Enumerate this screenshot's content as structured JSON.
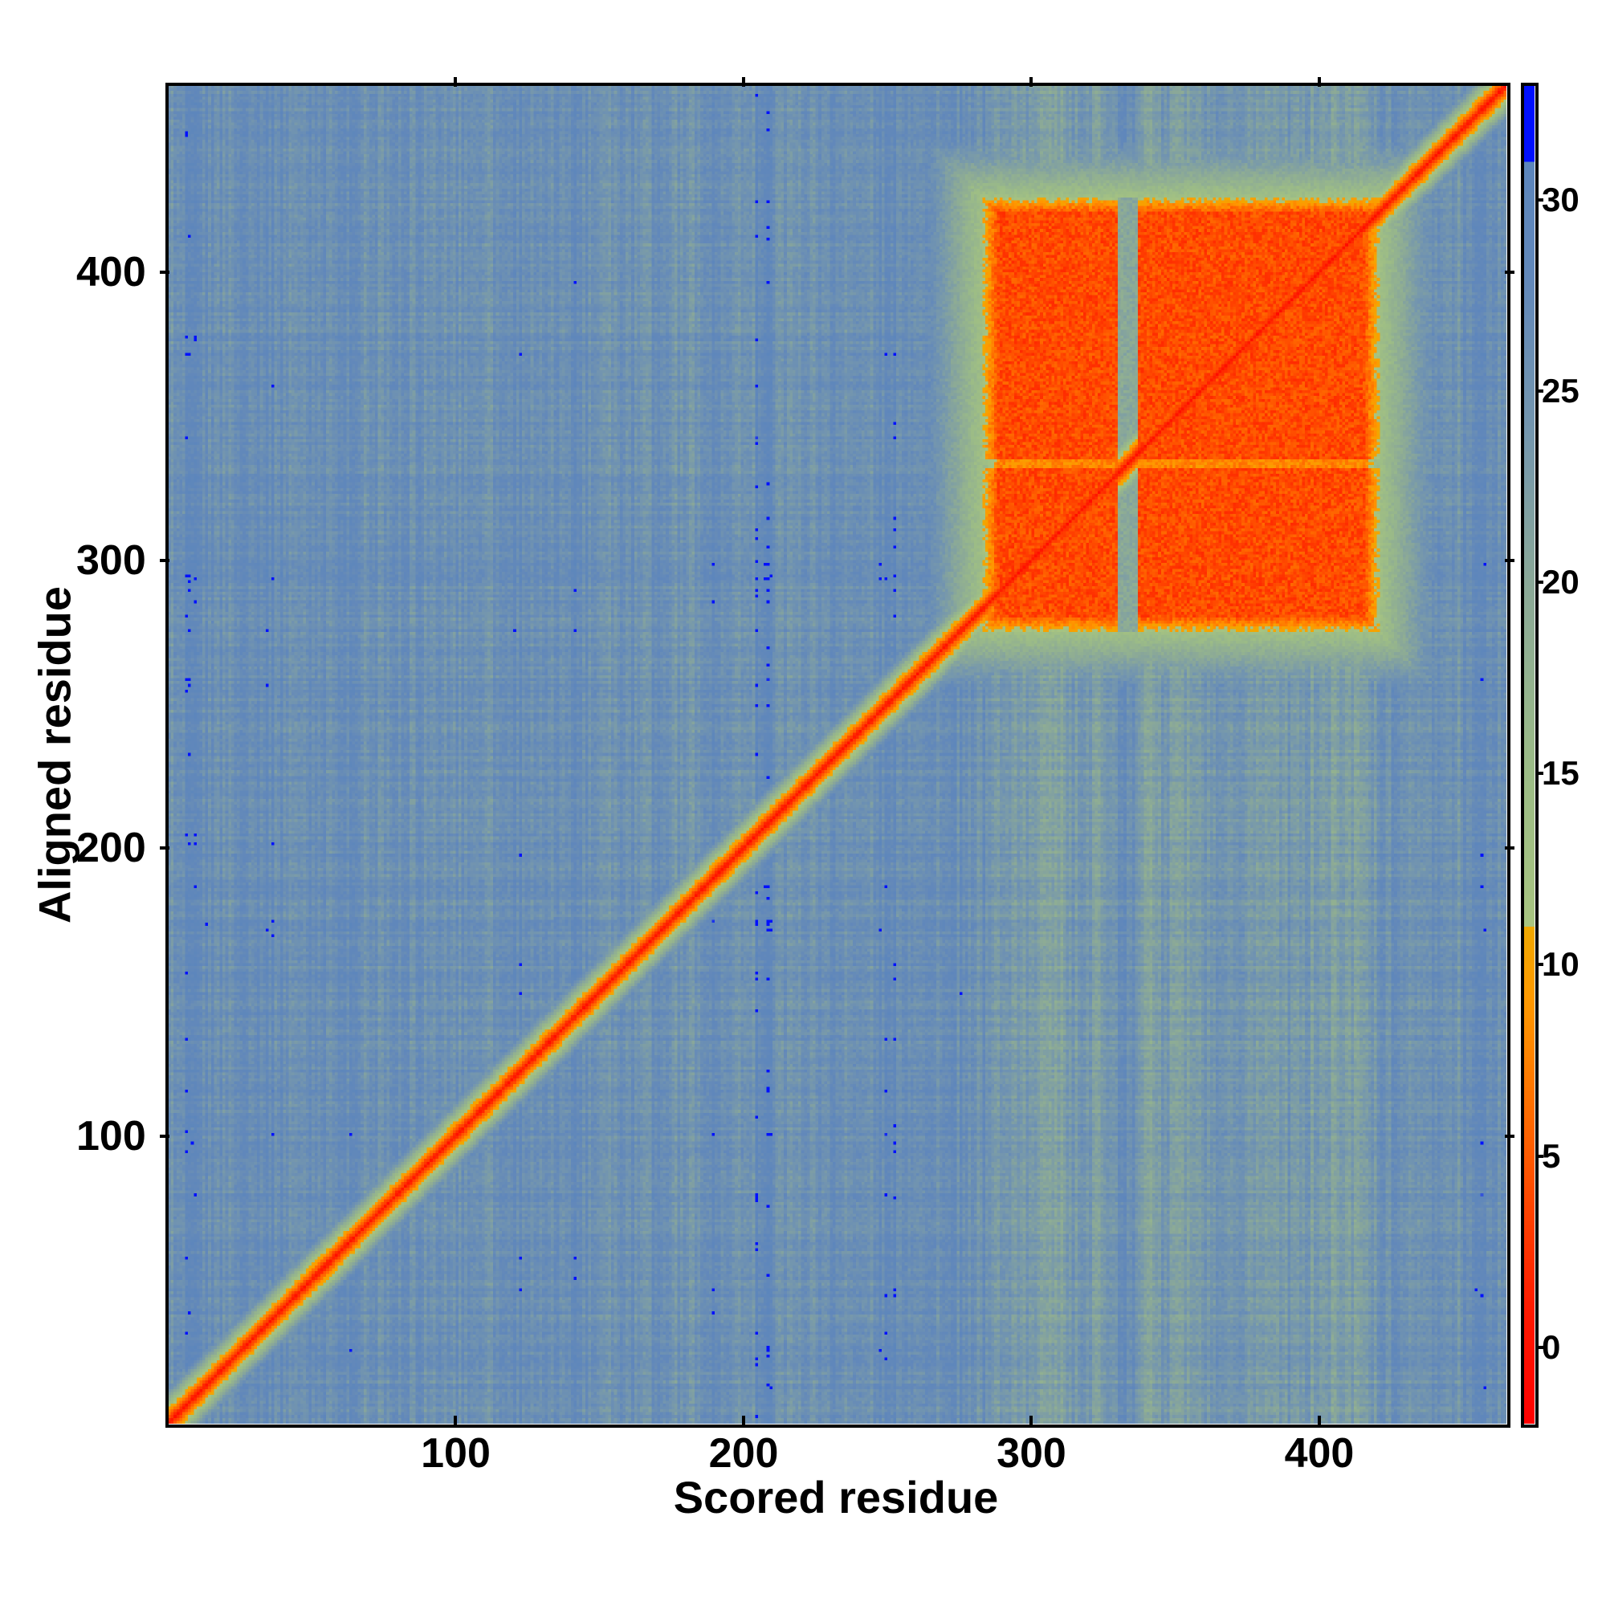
{
  "chart_data": {
    "type": "heatmap",
    "title": "",
    "xlabel": "Scored residue",
    "ylabel": "Aligned residue",
    "n_residues": 465,
    "xlim": [
      0,
      465
    ],
    "ylim": [
      0,
      465
    ],
    "xticks": [
      "100",
      "200",
      "300",
      "400"
    ],
    "xtick_values": [
      100,
      200,
      300,
      400
    ],
    "yticks": [
      "100",
      "200",
      "300",
      "400"
    ],
    "ytick_values": [
      100,
      200,
      300,
      400
    ],
    "colorbar": {
      "range": [
        -2,
        33
      ],
      "ticks": [
        "0",
        "5",
        "10",
        "15",
        "20",
        "25",
        "30"
      ],
      "tick_values": [
        0,
        5,
        10,
        15,
        20,
        25,
        30
      ]
    },
    "background_value": 26,
    "diagonal_value": 0,
    "domain_blocks": [
      {
        "x": [
          283,
          420
        ],
        "y": [
          275,
          425
        ],
        "value": 2,
        "gap_residue": 333
      }
    ],
    "colormap": [
      {
        "v": -2,
        "c": "#ff0000"
      },
      {
        "v": 1,
        "c": "#ff1a00"
      },
      {
        "v": 3,
        "c": "#ff3a00"
      },
      {
        "v": 5,
        "c": "#ff5a00"
      },
      {
        "v": 7,
        "c": "#ff7a00"
      },
      {
        "v": 9,
        "c": "#ff9800"
      },
      {
        "v": 11,
        "c": "#f0a800"
      },
      {
        "v": 11.01,
        "c": "#a8c480"
      },
      {
        "v": 15,
        "c": "#9cbc86"
      },
      {
        "v": 20,
        "c": "#8aa898"
      },
      {
        "v": 24,
        "c": "#7496ae"
      },
      {
        "v": 28,
        "c": "#6288ba"
      },
      {
        "v": 30.99,
        "c": "#5c86bc"
      },
      {
        "v": 31,
        "c": "#0010ff"
      },
      {
        "v": 33,
        "c": "#0010ff"
      }
    ]
  }
}
